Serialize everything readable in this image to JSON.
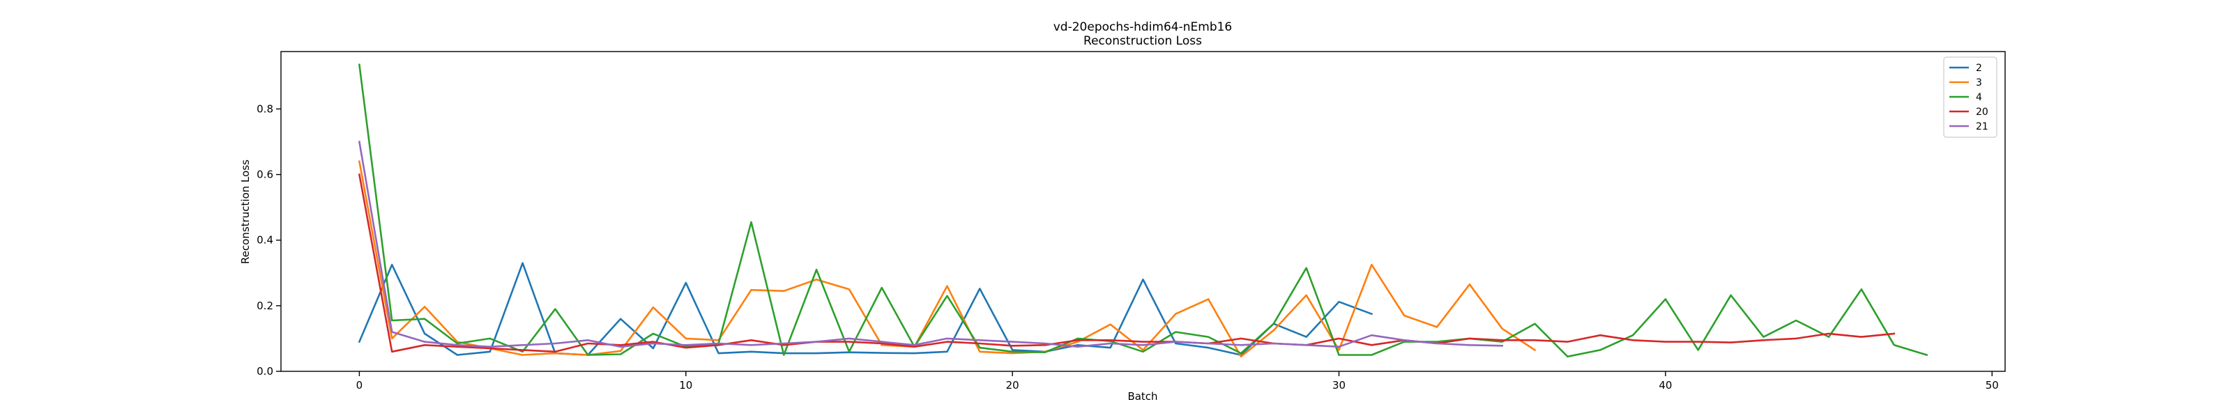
{
  "chart_data": {
    "type": "line",
    "title": "vd-20epochs-hdim64-nEmb16",
    "subtitle": "Reconstruction Loss",
    "xlabel": "Batch",
    "ylabel": "Reconstruction Loss",
    "xlim": [
      -2.4,
      50.4
    ],
    "ylim": [
      0,
      0.975
    ],
    "xticks": [
      0,
      10,
      20,
      30,
      40,
      50
    ],
    "yticks": [
      0.0,
      0.2,
      0.4,
      0.6,
      0.8
    ],
    "ytick_labels": [
      "0.0",
      "0.2",
      "0.4",
      "0.6",
      "0.8"
    ],
    "legend_position": "top-right",
    "grid": false,
    "series": [
      {
        "name": "2",
        "color": "#1f77b4",
        "values": [
          0.09,
          0.325,
          0.115,
          0.05,
          0.06,
          0.33,
          0.055,
          0.05,
          0.16,
          0.07,
          0.27,
          0.055,
          0.06,
          0.055,
          0.055,
          0.058,
          0.056,
          0.055,
          0.06,
          0.252,
          0.065,
          0.06,
          0.08,
          0.072,
          0.28,
          0.085,
          0.072,
          0.05,
          0.145,
          0.105,
          0.212,
          0.175
        ]
      },
      {
        "name": "3",
        "color": "#ff7f0e",
        "values": [
          0.64,
          0.1,
          0.197,
          0.09,
          0.07,
          0.05,
          0.055,
          0.05,
          0.062,
          0.195,
          0.1,
          0.095,
          0.248,
          0.245,
          0.28,
          0.25,
          0.08,
          0.075,
          0.26,
          0.06,
          0.055,
          0.06,
          0.09,
          0.143,
          0.065,
          0.175,
          0.22,
          0.045,
          0.125,
          0.232,
          0.065,
          0.325,
          0.17,
          0.135,
          0.265,
          0.13,
          0.065
        ]
      },
      {
        "name": "4",
        "color": "#2ca02c",
        "values": [
          0.935,
          0.155,
          0.16,
          0.085,
          0.1,
          0.06,
          0.19,
          0.05,
          0.052,
          0.115,
          0.075,
          0.085,
          0.455,
          0.05,
          0.31,
          0.06,
          0.255,
          0.075,
          0.23,
          0.072,
          0.06,
          0.058,
          0.1,
          0.092,
          0.06,
          0.12,
          0.105,
          0.055,
          0.145,
          0.315,
          0.05,
          0.05,
          0.09,
          0.09,
          0.1,
          0.09,
          0.145,
          0.045,
          0.065,
          0.11,
          0.22,
          0.065,
          0.232,
          0.105,
          0.155,
          0.105,
          0.25,
          0.08,
          0.05
        ]
      },
      {
        "name": "20",
        "color": "#d62728",
        "values": [
          0.6,
          0.06,
          0.08,
          0.075,
          0.07,
          0.065,
          0.06,
          0.085,
          0.08,
          0.09,
          0.072,
          0.08,
          0.095,
          0.08,
          0.09,
          0.09,
          0.085,
          0.075,
          0.09,
          0.085,
          0.078,
          0.08,
          0.095,
          0.095,
          0.09,
          0.09,
          0.085,
          0.1,
          0.085,
          0.08,
          0.1,
          0.08,
          0.095,
          0.085,
          0.1,
          0.095,
          0.095,
          0.09,
          0.11,
          0.095,
          0.09,
          0.09,
          0.088,
          0.095,
          0.1,
          0.115,
          0.105,
          0.115
        ]
      },
      {
        "name": "21",
        "color": "#9467bd",
        "values": [
          0.7,
          0.12,
          0.09,
          0.08,
          0.075,
          0.08,
          0.085,
          0.095,
          0.075,
          0.085,
          0.08,
          0.085,
          0.08,
          0.085,
          0.09,
          0.1,
          0.09,
          0.08,
          0.1,
          0.095,
          0.09,
          0.085,
          0.075,
          0.085,
          0.08,
          0.09,
          0.085,
          0.08,
          0.085,
          0.08,
          0.075,
          0.11,
          0.095,
          0.085,
          0.08,
          0.078
        ]
      }
    ]
  }
}
